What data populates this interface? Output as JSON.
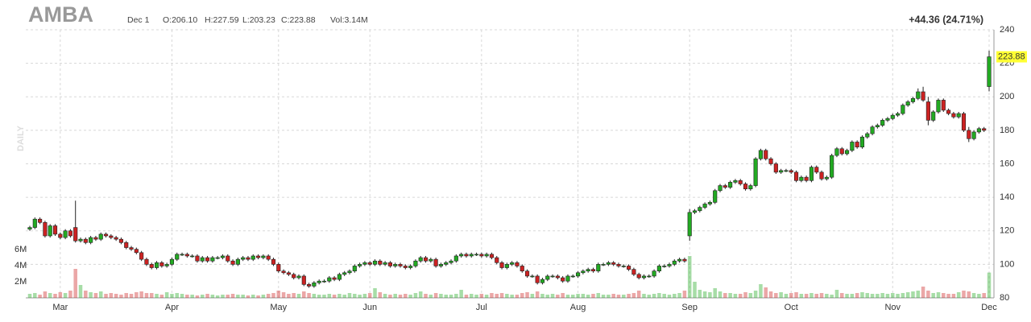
{
  "chart_data": {
    "type": "candlestick",
    "title": "AMBA",
    "date_label": "Dec 1",
    "ohlc_labels": [
      "O:206.10",
      "H:227.59",
      "L:203.23",
      "C:223.88",
      "Vol:3.14M"
    ],
    "change_label": "+44.36 (24.71%)",
    "period_label": "DAILY",
    "up_color": "#22aa22",
    "down_color": "#cc2222",
    "change_color": "#22aa22",
    "highlight_color": "#ffff33",
    "grid": true,
    "ylim": [
      80,
      240
    ],
    "yticks": [
      80,
      100,
      120,
      140,
      160,
      180,
      200,
      220,
      240
    ],
    "volume_ylim": [
      0,
      20
    ],
    "volume_ticks": [
      {
        "value": 2,
        "label": "2M"
      },
      {
        "value": 4,
        "label": "4M"
      },
      {
        "value": 6,
        "label": "6M"
      }
    ],
    "categories": [
      null,
      null,
      null,
      null,
      null,
      null,
      "Mar",
      null,
      null,
      null,
      null,
      null,
      null,
      null,
      null,
      null,
      null,
      null,
      null,
      null,
      null,
      null,
      null,
      null,
      null,
      null,
      null,
      null,
      "Apr",
      null,
      null,
      null,
      null,
      null,
      null,
      null,
      null,
      null,
      null,
      null,
      null,
      null,
      null,
      null,
      null,
      null,
      null,
      null,
      null,
      "May",
      null,
      null,
      null,
      null,
      null,
      null,
      null,
      null,
      null,
      null,
      null,
      null,
      null,
      null,
      null,
      null,
      null,
      "Jun",
      null,
      null,
      null,
      null,
      null,
      null,
      null,
      null,
      null,
      null,
      null,
      null,
      null,
      null,
      null,
      null,
      null,
      null,
      null,
      null,
      null,
      "Jul",
      null,
      null,
      null,
      null,
      null,
      null,
      null,
      null,
      null,
      null,
      null,
      null,
      null,
      null,
      null,
      null,
      null,
      null,
      "Aug",
      null,
      null,
      null,
      null,
      null,
      null,
      null,
      null,
      null,
      null,
      null,
      null,
      null,
      null,
      null,
      null,
      null,
      null,
      null,
      null,
      null,
      "Sep",
      null,
      null,
      null,
      null,
      null,
      null,
      null,
      null,
      null,
      null,
      null,
      null,
      null,
      null,
      null,
      null,
      null,
      null,
      null,
      "Oct",
      null,
      null,
      null,
      null,
      null,
      null,
      null,
      null,
      null,
      null,
      null,
      null,
      null,
      null,
      null,
      null,
      null,
      null,
      null,
      "Nov",
      null,
      null,
      null,
      null,
      null,
      null,
      null,
      null,
      null,
      null,
      null,
      null,
      null,
      null,
      null,
      null,
      null,
      null,
      "Dec"
    ],
    "open": [
      121,
      122,
      127,
      125,
      117,
      123,
      118,
      116,
      120,
      122,
      114,
      115,
      113,
      116,
      115,
      118,
      117,
      116,
      115,
      113,
      110,
      109,
      107,
      103,
      100,
      98,
      101,
      99,
      100,
      103,
      106,
      106,
      105,
      105,
      102,
      104,
      102,
      104,
      104,
      105,
      102,
      100,
      103,
      104,
      103,
      105,
      104,
      105,
      103,
      100,
      96,
      95,
      94,
      92,
      93,
      88,
      87,
      89,
      90,
      90,
      92,
      91,
      94,
      95,
      96,
      99,
      100,
      101,
      100,
      102,
      100,
      101,
      99,
      100,
      99,
      98,
      99,
      102,
      104,
      102,
      103,
      99,
      100,
      101,
      102,
      105,
      106,
      105,
      106,
      106,
      105,
      106,
      104,
      101,
      98,
      100,
      101,
      99,
      96,
      93,
      93,
      89,
      91,
      93,
      93,
      92,
      90,
      93,
      93,
      95,
      96,
      97,
      96,
      100,
      100,
      101,
      100,
      99,
      99,
      97,
      94,
      92,
      93,
      93,
      96,
      99,
      99,
      100,
      102,
      103,
      117,
      131,
      132,
      134,
      136,
      137,
      144,
      147,
      146,
      149,
      150,
      148,
      145,
      147,
      163,
      168,
      163,
      160,
      155,
      156,
      156,
      155,
      150,
      152,
      150,
      158,
      155,
      151,
      152,
      165,
      169,
      166,
      168,
      173,
      170,
      176,
      178,
      182,
      183,
      186,
      187,
      189,
      190,
      195,
      197,
      199,
      203,
      197,
      186,
      191,
      198,
      192,
      190,
      188,
      190,
      180,
      175,
      179,
      181,
      206.1
    ],
    "high": [
      123,
      128,
      128,
      126,
      124,
      124,
      119,
      121,
      121,
      138,
      116,
      116,
      117,
      117,
      119,
      119,
      118,
      117,
      116,
      114,
      111,
      110,
      108,
      104,
      101,
      102,
      102,
      101,
      104,
      107,
      107,
      107,
      106,
      106,
      105,
      105,
      105,
      105,
      106,
      106,
      103,
      104,
      105,
      105,
      106,
      106,
      106,
      106,
      104,
      101,
      97,
      96,
      95,
      94,
      94,
      89,
      90,
      91,
      91,
      93,
      93,
      95,
      96,
      97,
      100,
      101,
      102,
      102,
      103,
      103,
      102,
      102,
      101,
      101,
      100,
      100,
      103,
      105,
      105,
      104,
      104,
      101,
      102,
      103,
      106,
      107,
      107,
      107,
      107,
      107,
      107,
      107,
      105,
      102,
      101,
      102,
      102,
      100,
      97,
      94,
      94,
      92,
      94,
      94,
      94,
      93,
      94,
      94,
      96,
      97,
      98,
      98,
      101,
      101,
      102,
      102,
      101,
      100,
      100,
      98,
      95,
      94,
      94,
      97,
      100,
      100,
      101,
      103,
      104,
      104,
      133,
      133,
      135,
      137,
      138,
      145,
      148,
      148,
      150,
      151,
      151,
      149,
      148,
      164,
      169,
      169,
      164,
      161,
      157,
      157,
      157,
      156,
      153,
      153,
      159,
      159,
      156,
      153,
      166,
      170,
      170,
      169,
      174,
      174,
      177,
      179,
      183,
      184,
      187,
      188,
      190,
      191,
      196,
      198,
      200,
      205,
      206,
      200,
      192,
      199,
      199,
      193,
      191,
      191,
      191,
      182,
      180,
      182,
      182,
      227.59
    ],
    "low": [
      120,
      121,
      124,
      116,
      116,
      117,
      115,
      115,
      116,
      113,
      113,
      112,
      112,
      114,
      114,
      116,
      115,
      114,
      112,
      109,
      108,
      106,
      102,
      99,
      97,
      97,
      98,
      98,
      99,
      102,
      105,
      104,
      104,
      101,
      101,
      101,
      101,
      103,
      103,
      101,
      99,
      99,
      102,
      102,
      102,
      103,
      103,
      102,
      99,
      95,
      94,
      93,
      91,
      91,
      87,
      86,
      86,
      88,
      89,
      89,
      90,
      90,
      93,
      94,
      95,
      98,
      99,
      99,
      99,
      99,
      99,
      98,
      98,
      98,
      97,
      97,
      98,
      101,
      101,
      101,
      98,
      98,
      99,
      100,
      101,
      104,
      104,
      104,
      105,
      104,
      104,
      103,
      100,
      97,
      97,
      99,
      98,
      95,
      92,
      92,
      88,
      88,
      90,
      92,
      91,
      89,
      89,
      92,
      92,
      94,
      95,
      95,
      95,
      99,
      99,
      99,
      98,
      98,
      96,
      93,
      91,
      91,
      92,
      92,
      95,
      98,
      98,
      99,
      101,
      101,
      114,
      130,
      131,
      133,
      135,
      136,
      143,
      145,
      145,
      148,
      147,
      144,
      144,
      146,
      162,
      162,
      159,
      154,
      154,
      155,
      154,
      149,
      149,
      149,
      149,
      154,
      150,
      150,
      151,
      164,
      165,
      165,
      167,
      169,
      169,
      175,
      177,
      181,
      182,
      185,
      186,
      188,
      189,
      194,
      196,
      198,
      197,
      183,
      185,
      190,
      191,
      189,
      187,
      187,
      179,
      173,
      174,
      178,
      179,
      203.23
    ],
    "close": [
      122,
      127,
      125,
      117,
      123,
      118,
      116,
      120,
      117,
      114,
      115,
      113,
      116,
      115,
      118,
      117,
      116,
      115,
      113,
      110,
      109,
      107,
      103,
      100,
      98,
      101,
      99,
      100,
      103,
      106,
      106,
      105,
      105,
      102,
      104,
      102,
      104,
      104,
      105,
      102,
      100,
      103,
      104,
      103,
      105,
      104,
      105,
      103,
      100,
      96,
      95,
      94,
      92,
      93,
      88,
      87,
      89,
      90,
      90,
      92,
      91,
      94,
      95,
      96,
      99,
      100,
      101,
      100,
      102,
      100,
      101,
      99,
      100,
      99,
      98,
      99,
      102,
      104,
      102,
      103,
      99,
      100,
      101,
      102,
      105,
      106,
      105,
      106,
      106,
      105,
      106,
      104,
      101,
      98,
      100,
      101,
      99,
      96,
      93,
      93,
      89,
      91,
      93,
      93,
      92,
      90,
      93,
      93,
      95,
      96,
      97,
      96,
      100,
      100,
      101,
      100,
      99,
      99,
      97,
      94,
      92,
      93,
      93,
      96,
      99,
      99,
      100,
      102,
      103,
      102,
      131,
      132,
      134,
      136,
      137,
      144,
      147,
      146,
      149,
      150,
      148,
      145,
      147,
      163,
      168,
      163,
      160,
      155,
      156,
      156,
      155,
      150,
      152,
      150,
      158,
      155,
      151,
      152,
      165,
      169,
      166,
      168,
      173,
      170,
      176,
      178,
      182,
      183,
      186,
      187,
      189,
      190,
      195,
      197,
      199,
      203,
      198,
      186,
      191,
      198,
      192,
      190,
      188,
      190,
      180,
      175,
      179,
      181,
      180,
      223.88
    ],
    "volume": [
      0.5,
      0.6,
      0.4,
      0.8,
      0.6,
      0.5,
      0.7,
      0.6,
      0.9,
      3.6,
      1.6,
      0.9,
      0.7,
      0.6,
      0.8,
      0.5,
      0.6,
      0.5,
      0.4,
      0.6,
      0.5,
      0.7,
      0.8,
      0.6,
      0.6,
      0.5,
      0.4,
      0.7,
      0.5,
      0.6,
      0.5,
      0.4,
      0.4,
      0.3,
      0.4,
      0.5,
      0.4,
      0.3,
      0.4,
      0.4,
      0.5,
      0.4,
      0.4,
      0.3,
      0.4,
      0.3,
      0.4,
      0.5,
      0.6,
      0.9,
      0.7,
      0.5,
      0.6,
      0.5,
      0.8,
      0.6,
      0.5,
      0.4,
      0.4,
      0.5,
      0.4,
      0.5,
      0.4,
      0.6,
      0.5,
      0.4,
      0.5,
      0.6,
      1.2,
      0.7,
      0.5,
      0.4,
      0.5,
      0.4,
      0.5,
      0.4,
      0.6,
      0.8,
      0.5,
      0.4,
      0.6,
      0.5,
      0.4,
      0.4,
      0.5,
      1.0,
      0.4,
      0.5,
      0.4,
      0.5,
      0.4,
      0.6,
      0.5,
      0.6,
      0.5,
      0.4,
      0.4,
      0.6,
      0.7,
      0.5,
      0.8,
      0.5,
      0.4,
      0.5,
      0.4,
      0.6,
      0.4,
      0.4,
      0.5,
      0.5,
      0.4,
      0.5,
      0.6,
      0.4,
      0.4,
      0.5,
      0.4,
      0.4,
      0.5,
      0.6,
      0.9,
      0.5,
      0.4,
      0.5,
      0.6,
      0.5,
      0.4,
      0.5,
      0.6,
      0.9,
      5.2,
      2.0,
      1.0,
      0.8,
      0.7,
      1.2,
      0.8,
      0.6,
      0.6,
      0.5,
      0.5,
      0.7,
      0.6,
      0.9,
      1.7,
      1.3,
      0.8,
      0.6,
      0.7,
      0.5,
      0.6,
      0.7,
      0.5,
      0.5,
      0.6,
      0.5,
      0.6,
      0.5,
      0.4,
      1.0,
      0.6,
      0.5,
      0.5,
      0.6,
      0.7,
      0.6,
      0.5,
      0.5,
      0.6,
      0.5,
      0.6,
      0.5,
      0.6,
      0.7,
      0.8,
      0.9,
      1.4,
      0.9,
      0.6,
      0.7,
      0.6,
      0.5,
      0.5,
      0.7,
      0.9,
      0.8,
      0.6,
      0.5,
      0.6,
      3.14
    ]
  }
}
